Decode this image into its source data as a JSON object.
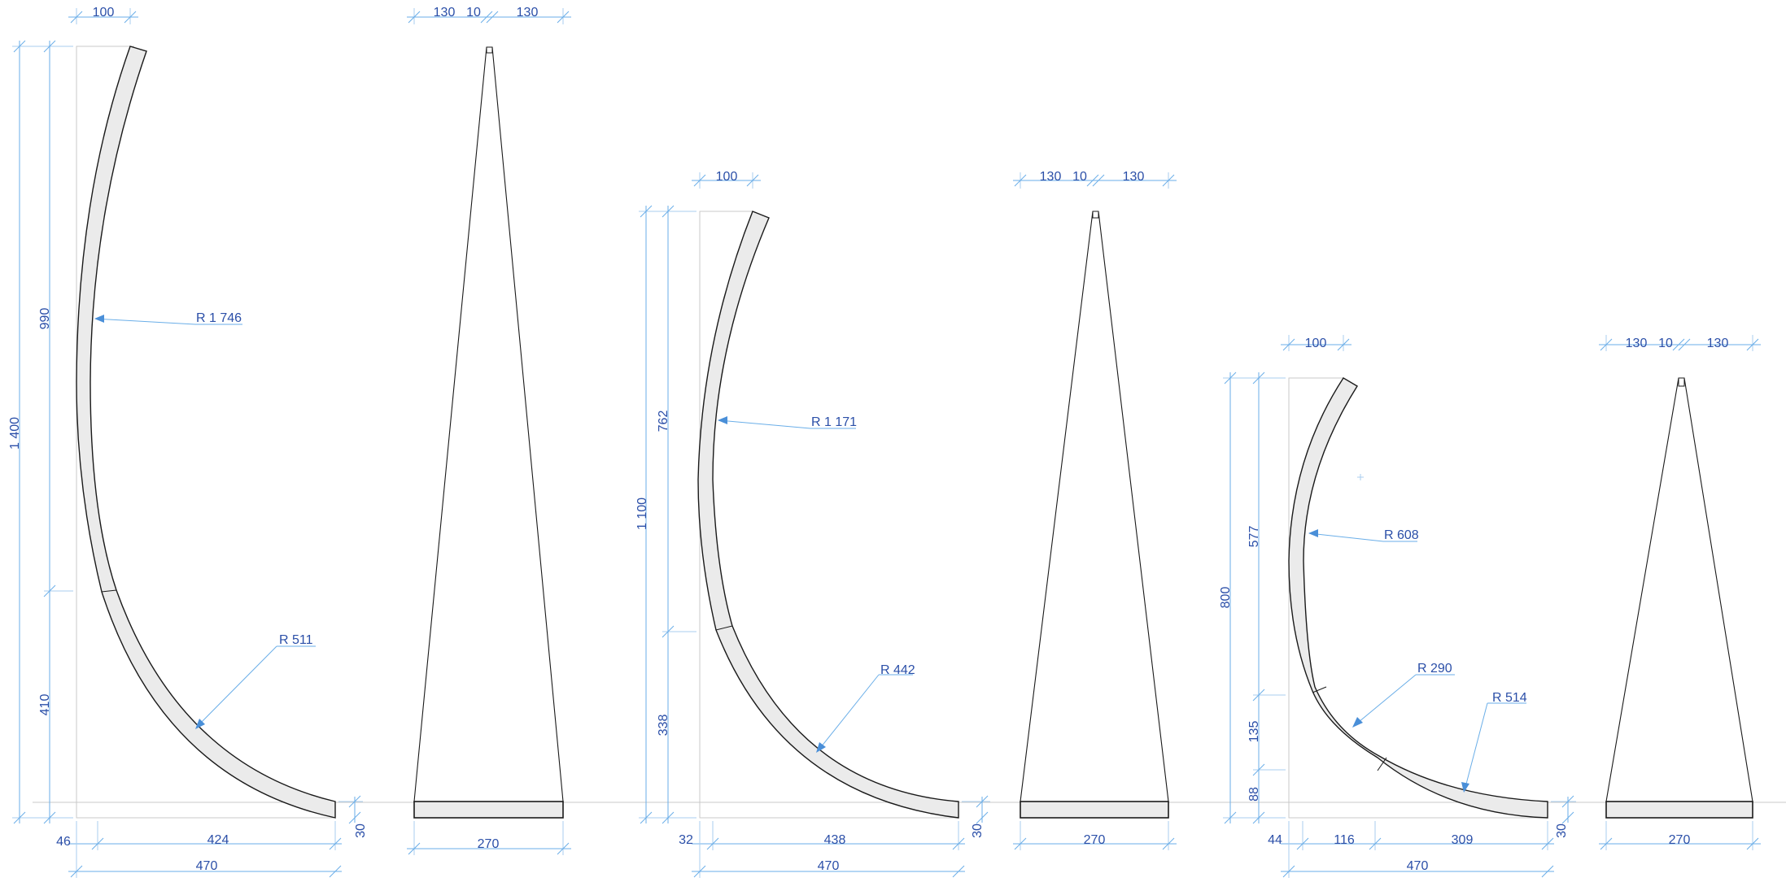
{
  "ground": {},
  "groups": [
    {
      "profile": {
        "dims": [
          "100",
          "1 400",
          "990",
          "410",
          "46",
          "424",
          "470",
          "30"
        ],
        "radii": [
          "R 1 746",
          "R 511"
        ]
      },
      "cone": {
        "dims": [
          "130",
          "10",
          "130",
          "270"
        ]
      }
    },
    {
      "profile": {
        "dims": [
          "100",
          "1 100",
          "762",
          "338",
          "32",
          "438",
          "470",
          "30"
        ],
        "radii": [
          "R 1 171",
          "R 442"
        ]
      },
      "cone": {
        "dims": [
          "130",
          "10",
          "130",
          "270"
        ]
      }
    },
    {
      "profile": {
        "dims": [
          "100",
          "800",
          "577",
          "135",
          "88",
          "44",
          "116",
          "309",
          "470",
          "30"
        ],
        "radii": [
          "R 608",
          "R 290",
          "R 514"
        ]
      },
      "cone": {
        "dims": [
          "130",
          "10",
          "130",
          "270"
        ]
      }
    }
  ]
}
